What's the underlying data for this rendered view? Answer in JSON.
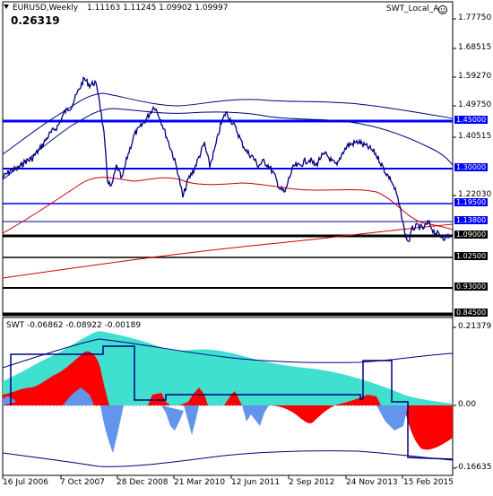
{
  "main": {
    "header_icon": "down-arrow-icon",
    "symbol": "EURUSD,Weekly",
    "ohlc": "1.11163 1.11245 1.09902 1.09997",
    "big_value": "0.26319",
    "indicator_label": "SWT_Local_A",
    "indicator_icon": "smiley-icon",
    "price_axis": [
      "1.77750",
      "1.68515",
      "1.59270",
      "1.49750",
      "1.40515",
      "1.22030",
      "1.09000"
    ],
    "levels": [
      {
        "label": "1.45000",
        "color": "#0000ff"
      },
      {
        "label": "1.30000",
        "color": "#0000ff"
      },
      {
        "label": "1.19500",
        "color": "#0000ff"
      },
      {
        "label": "1.13800",
        "color": "#0000ff"
      },
      {
        "label": "1.09000",
        "color": "#000000"
      },
      {
        "label": "1.02500",
        "color": "#000000"
      },
      {
        "label": "0.93000",
        "color": "#000000"
      },
      {
        "label": "0.84500",
        "color": "#000000"
      }
    ]
  },
  "sub": {
    "title": "SWT -0.06862 -0.08922 -0.00189",
    "axis": [
      "0.21379",
      "0.00",
      "-0.16635"
    ]
  },
  "time_axis": [
    "16 Jul 2006",
    "7 Oct 2007",
    "28 Dec 2008",
    "21 Mar 2010",
    "12 Jun 2011",
    "2 Sep 2012",
    "24 Nov 2013",
    "15 Feb 2015"
  ],
  "colors": {
    "price": "#00007f",
    "ma_red": "#cc0000",
    "envelope": "#000080",
    "level_blue": "#0000ff",
    "level_black": "#000000",
    "fill_cyan": "#40e0d0",
    "fill_red": "#ff0000",
    "fill_blue": "#6495ed"
  }
}
